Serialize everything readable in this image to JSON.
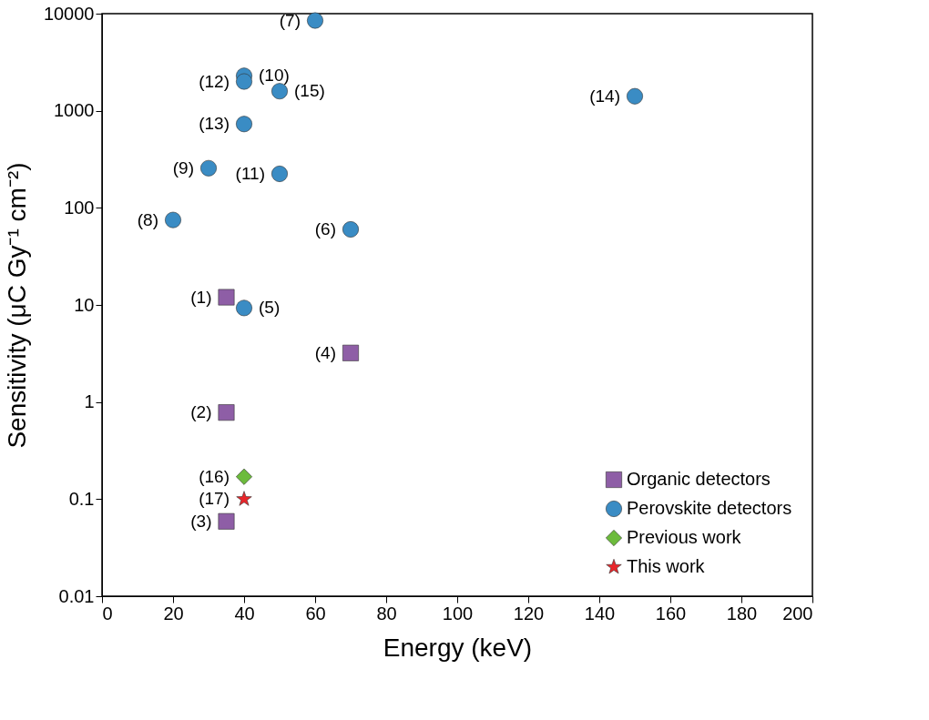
{
  "chart_data": {
    "type": "scatter",
    "xlabel": "Energy (keV)",
    "ylabel": "Sensitivity (μC Gy⁻¹ cm⁻²)",
    "log": "y",
    "xlim": [
      0,
      200
    ],
    "xticks": [
      0,
      20,
      40,
      60,
      80,
      100,
      120,
      140,
      160,
      180,
      200
    ],
    "ylim": [
      0.01,
      10000
    ],
    "yticks": [
      0.01,
      0.1,
      1,
      10,
      100,
      1000,
      10000
    ],
    "grid": false,
    "legend": "bottom right",
    "series": [
      {
        "name": "Organic detectors",
        "color": "#8e5ea6",
        "marker": "square",
        "x": [
          35,
          35,
          35,
          70
        ],
        "values": [
          12,
          0.78,
          0.059,
          3.2
        ]
      },
      {
        "name": "Perovskite detectors",
        "color": "#3a8cc4",
        "marker": "circle",
        "x": [
          40,
          70,
          60,
          20,
          30,
          40,
          50,
          40,
          40,
          150,
          50
        ],
        "values": [
          9.3,
          60,
          8500,
          75,
          256,
          2290,
          224,
          2000,
          730,
          1410,
          1590
        ]
      },
      {
        "name": "Previous work",
        "color": "#6cbb3c",
        "marker": "diamond",
        "x": [
          40
        ],
        "values": [
          0.17
        ]
      },
      {
        "name": "This work",
        "color": "#e8262a",
        "marker": "star",
        "x": [
          40
        ],
        "values": [
          0.1
        ]
      }
    ],
    "annotations": [
      {
        "text": "(1)",
        "x": 35,
        "y": 12
      },
      {
        "text": "(2)",
        "x": 35,
        "y": 0.78
      },
      {
        "text": "(3)",
        "x": 35,
        "y": 0.059
      },
      {
        "text": "(4)",
        "x": 70,
        "y": 3.2
      },
      {
        "text": "(5)",
        "x": 40,
        "y": 9.3
      },
      {
        "text": "(6)",
        "x": 70,
        "y": 60
      },
      {
        "text": "(7)",
        "x": 60,
        "y": 8500
      },
      {
        "text": "(8)",
        "x": 20,
        "y": 75
      },
      {
        "text": "(9)",
        "x": 30,
        "y": 256
      },
      {
        "text": "(12)",
        "x": 40,
        "y": 2000
      },
      {
        "text": "(10)",
        "x": 40,
        "y": 2290
      },
      {
        "text": "(11)",
        "x": 50,
        "y": 224
      },
      {
        "text": "(13)",
        "x": 40,
        "y": 730
      },
      {
        "text": "(14)",
        "x": 150,
        "y": 1410
      },
      {
        "text": "(15)",
        "x": 50,
        "y": 1590
      },
      {
        "text": "(16)",
        "x": 40,
        "y": 0.17
      },
      {
        "text": "(17)",
        "x": 40,
        "y": 0.1
      }
    ]
  }
}
